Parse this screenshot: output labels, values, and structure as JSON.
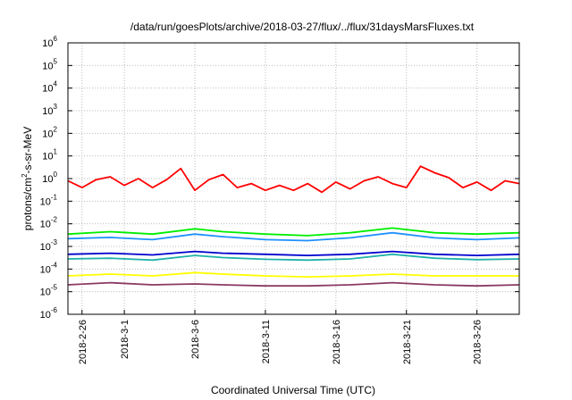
{
  "chart_data": {
    "type": "line",
    "title": "/data/run/goesPlots/archive/2018-03-27/flux/../flux/31daysMarsFluxes.txt",
    "xlabel": "Coordinated Universal Time (UTC)",
    "ylabel_base": "protons/cm",
    "ylabel_sup": "2",
    "ylabel_rest": "-s-sr-MeV",
    "y_scale": "log",
    "ylim": [
      1e-06,
      1000000.0
    ],
    "y_ticks": [
      {
        "value": 1e-06,
        "base": "10",
        "exp": "-6"
      },
      {
        "value": 1e-05,
        "base": "10",
        "exp": "-5"
      },
      {
        "value": 0.0001,
        "base": "10",
        "exp": "-4"
      },
      {
        "value": 0.001,
        "base": "10",
        "exp": "-3"
      },
      {
        "value": 0.01,
        "base": "10",
        "exp": "-2"
      },
      {
        "value": 0.1,
        "base": "10",
        "exp": "-1"
      },
      {
        "value": 1,
        "base": "10",
        "exp": "0"
      },
      {
        "value": 10.0,
        "base": "10",
        "exp": "1"
      },
      {
        "value": 100.0,
        "base": "10",
        "exp": "2"
      },
      {
        "value": 1000.0,
        "base": "10",
        "exp": "3"
      },
      {
        "value": 10000.0,
        "base": "10",
        "exp": "4"
      },
      {
        "value": 100000.0,
        "base": "10",
        "exp": "5"
      },
      {
        "value": 1000000.0,
        "base": "10",
        "exp": "6"
      }
    ],
    "x_range": [
      "2018-02-25",
      "2018-03-29"
    ],
    "x_ticks": [
      "2018-2-26",
      "2018-3-1",
      "2018-3-6",
      "2018-3-11",
      "2018-3-16",
      "2018-3-21",
      "2018-3-26"
    ],
    "grid": true,
    "series": [
      {
        "color": "#ff0000",
        "x": [
          "2018-02-25",
          "2018-02-26",
          "2018-02-27",
          "2018-02-28",
          "2018-03-01",
          "2018-03-02",
          "2018-03-03",
          "2018-03-04",
          "2018-03-05",
          "2018-03-06",
          "2018-03-07",
          "2018-03-08",
          "2018-03-09",
          "2018-03-10",
          "2018-03-11",
          "2018-03-12",
          "2018-03-13",
          "2018-03-14",
          "2018-03-15",
          "2018-03-16",
          "2018-03-17",
          "2018-03-18",
          "2018-03-19",
          "2018-03-20",
          "2018-03-21",
          "2018-03-22",
          "2018-03-23",
          "2018-03-24",
          "2018-03-25",
          "2018-03-26",
          "2018-03-27",
          "2018-03-28",
          "2018-03-29"
        ],
        "values": [
          0.8,
          0.4,
          0.9,
          1.2,
          0.5,
          1.0,
          0.4,
          0.9,
          2.8,
          0.3,
          0.9,
          1.5,
          0.4,
          0.6,
          0.3,
          0.5,
          0.3,
          0.6,
          0.25,
          0.7,
          0.35,
          0.8,
          1.2,
          0.6,
          0.4,
          3.5,
          1.8,
          1.1,
          0.4,
          0.7,
          0.3,
          0.8,
          0.6
        ]
      },
      {
        "color": "#00ee00",
        "x": [
          "2018-02-25",
          "2018-02-28",
          "2018-03-03",
          "2018-03-06",
          "2018-03-08",
          "2018-03-11",
          "2018-03-14",
          "2018-03-17",
          "2018-03-20",
          "2018-03-23",
          "2018-03-26",
          "2018-03-29"
        ],
        "values": [
          0.0035,
          0.0045,
          0.0035,
          0.006,
          0.0045,
          0.0035,
          0.003,
          0.004,
          0.0065,
          0.004,
          0.0035,
          0.004
        ]
      },
      {
        "color": "#1e90ff",
        "x": [
          "2018-02-25",
          "2018-02-28",
          "2018-03-03",
          "2018-03-06",
          "2018-03-08",
          "2018-03-11",
          "2018-03-14",
          "2018-03-17",
          "2018-03-20",
          "2018-03-23",
          "2018-03-26",
          "2018-03-29"
        ],
        "values": [
          0.0022,
          0.0025,
          0.002,
          0.0035,
          0.0027,
          0.002,
          0.0018,
          0.0024,
          0.004,
          0.0024,
          0.002,
          0.0024
        ]
      },
      {
        "color": "#0000cd",
        "x": [
          "2018-02-25",
          "2018-02-28",
          "2018-03-03",
          "2018-03-06",
          "2018-03-08",
          "2018-03-11",
          "2018-03-14",
          "2018-03-17",
          "2018-03-20",
          "2018-03-23",
          "2018-03-26",
          "2018-03-29"
        ],
        "values": [
          0.00045,
          0.0005,
          0.00042,
          0.0006,
          0.0005,
          0.00045,
          0.0004,
          0.00045,
          0.0006,
          0.00045,
          0.0004,
          0.00045
        ]
      },
      {
        "color": "#20b2aa",
        "x": [
          "2018-02-25",
          "2018-02-28",
          "2018-03-03",
          "2018-03-06",
          "2018-03-08",
          "2018-03-11",
          "2018-03-14",
          "2018-03-17",
          "2018-03-20",
          "2018-03-23",
          "2018-03-26",
          "2018-03-29"
        ],
        "values": [
          0.00028,
          0.0003,
          0.00025,
          0.0004,
          0.00032,
          0.00027,
          0.00025,
          0.00028,
          0.00045,
          0.0003,
          0.00026,
          0.00028
        ]
      },
      {
        "color": "#ffff00",
        "x": [
          "2018-02-25",
          "2018-02-28",
          "2018-03-03",
          "2018-03-06",
          "2018-03-08",
          "2018-03-11",
          "2018-03-14",
          "2018-03-17",
          "2018-03-20",
          "2018-03-23",
          "2018-03-26",
          "2018-03-29"
        ],
        "values": [
          5e-05,
          6e-05,
          5e-05,
          7e-05,
          6e-05,
          5e-05,
          4.5e-05,
          5e-05,
          6e-05,
          5e-05,
          5e-05,
          5e-05
        ]
      },
      {
        "color": "#8b3a62",
        "x": [
          "2018-02-25",
          "2018-02-28",
          "2018-03-03",
          "2018-03-06",
          "2018-03-08",
          "2018-03-11",
          "2018-03-14",
          "2018-03-17",
          "2018-03-20",
          "2018-03-23",
          "2018-03-26",
          "2018-03-29"
        ],
        "values": [
          2e-05,
          2.5e-05,
          2e-05,
          2.2e-05,
          2e-05,
          1.8e-05,
          1.8e-05,
          2e-05,
          2.5e-05,
          2e-05,
          1.8e-05,
          2e-05
        ]
      }
    ]
  }
}
